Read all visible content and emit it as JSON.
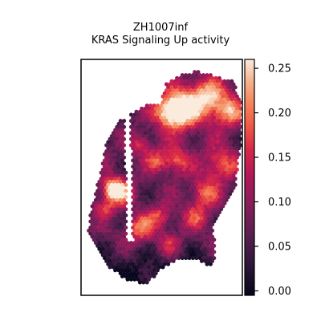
{
  "chart_data": {
    "type": "heatmap",
    "title": [
      "ZH1007inf",
      "KRAS Signaling Up activity"
    ],
    "colormap": "rocket",
    "colorbar": {
      "min": -0.005,
      "max": 0.26,
      "ticks": [
        0.0,
        0.05,
        0.1,
        0.15,
        0.2,
        0.25
      ],
      "tick_labels": [
        "0.00",
        "0.05",
        "0.10",
        "0.15",
        "0.20",
        "0.25"
      ]
    },
    "value_range": [
      0.0,
      0.26
    ],
    "axes_visible": false,
    "grid": false,
    "description_values": {
      "high_region": "upper right lobe",
      "low_region": "lower left edge"
    }
  },
  "colors": {
    "frame": "#000000",
    "background": "#ffffff"
  }
}
